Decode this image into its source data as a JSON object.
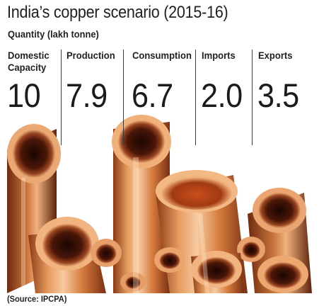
{
  "title": "India’s copper scenario (2015-16)",
  "subtitle": "Quantity (lakh tonne)",
  "metrics": [
    {
      "label": "Domestic\nCapacity",
      "value": "10"
    },
    {
      "label": "Production",
      "value": "7.9"
    },
    {
      "label": "Consumption",
      "value": "6.7"
    },
    {
      "label": "Imports",
      "value": "2.0"
    },
    {
      "label": "Exports",
      "value": "3.5"
    }
  ],
  "source": "(Source: IPCPA)",
  "colors": {
    "text": "#231f20",
    "copper_light": "#f2b783",
    "copper_mid": "#d8773e",
    "copper_dark": "#7a2f12",
    "copper_shadow": "#3b1206"
  }
}
